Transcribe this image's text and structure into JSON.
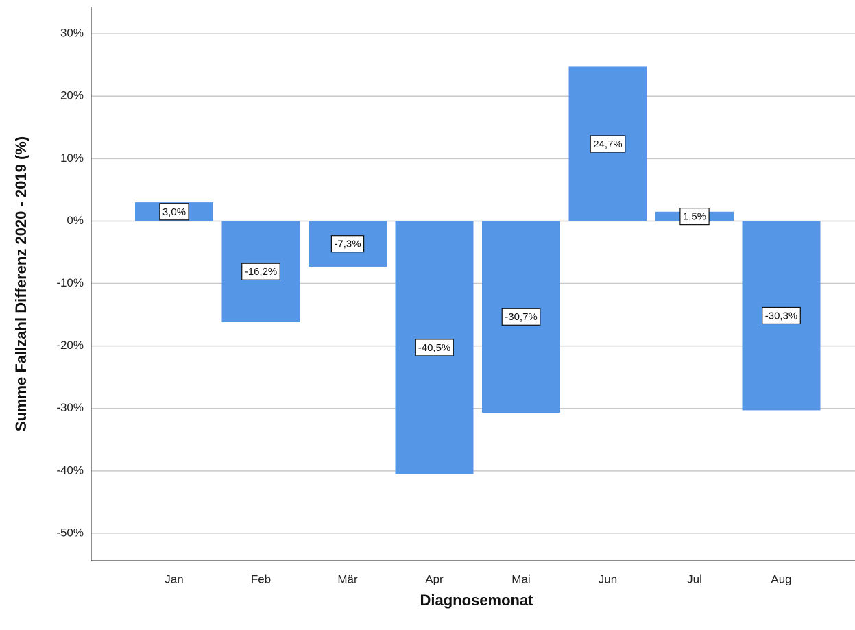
{
  "chart_data": {
    "type": "bar",
    "y_label": "Summe Fallzahl Differenz 2020 - 2019 (%)",
    "x_label": "Diagnosemonat",
    "categories": [
      "Jan",
      "Feb",
      "Mär",
      "Apr",
      "Mai",
      "Jun",
      "Jul",
      "Aug"
    ],
    "values": [
      3.0,
      -16.2,
      -7.3,
      -40.5,
      -30.7,
      24.7,
      1.5,
      -30.3
    ],
    "value_labels": [
      "3,0%",
      "-16,2%",
      "-7,3%",
      "-40,5%",
      "-30,7%",
      "24,7%",
      "1,5%",
      "-30,3%"
    ],
    "color": "#5596e6",
    "ylim": [
      -54.4,
      34.3
    ],
    "yticks": [
      {
        "value": -50,
        "label": "-50%"
      },
      {
        "value": -40,
        "label": "-40%"
      },
      {
        "value": -30,
        "label": "-30%"
      },
      {
        "value": -20,
        "label": "-20%"
      },
      {
        "value": -10,
        "label": "-10%"
      },
      {
        "value": 0,
        "label": "0%"
      },
      {
        "value": 10,
        "label": "10%"
      },
      {
        "value": 20,
        "label": "20%"
      },
      {
        "value": 30,
        "label": "30%"
      }
    ],
    "grid": true
  }
}
